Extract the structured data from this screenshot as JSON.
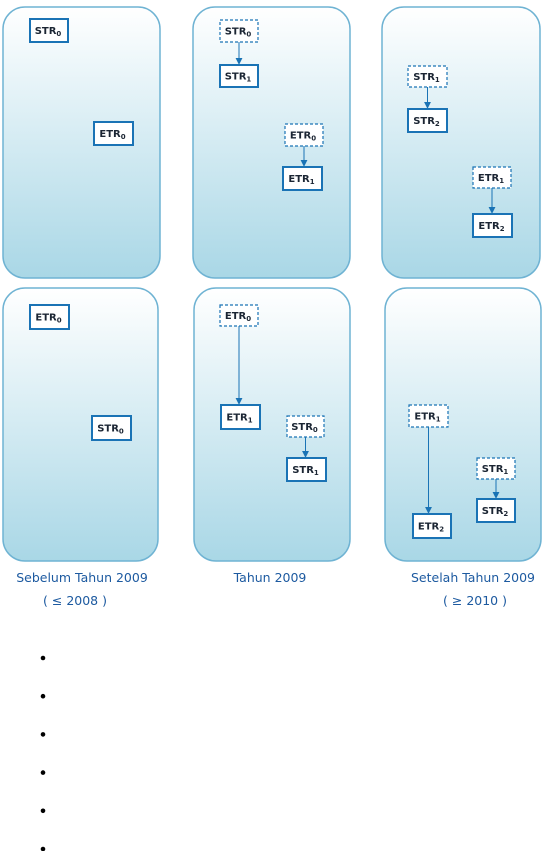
{
  "panels": [
    {
      "id": "top-before",
      "boxes": [
        {
          "base": "STR",
          "sub": "0",
          "dashed": false
        },
        {
          "base": "ETR",
          "sub": "0",
          "dashed": false
        }
      ]
    },
    {
      "id": "top-2009",
      "boxes": [
        {
          "base": "STR",
          "sub": "0",
          "dashed": true
        },
        {
          "base": "STR",
          "sub": "1",
          "dashed": false
        },
        {
          "base": "ETR",
          "sub": "0",
          "dashed": true
        },
        {
          "base": "ETR",
          "sub": "1",
          "dashed": false
        }
      ]
    },
    {
      "id": "top-after",
      "boxes": [
        {
          "base": "STR",
          "sub": "1",
          "dashed": true
        },
        {
          "base": "STR",
          "sub": "2",
          "dashed": false
        },
        {
          "base": "ETR",
          "sub": "1",
          "dashed": true
        },
        {
          "base": "ETR",
          "sub": "2",
          "dashed": false
        }
      ]
    },
    {
      "id": "bottom-before",
      "boxes": [
        {
          "base": "ETR",
          "sub": "0",
          "dashed": false
        },
        {
          "base": "STR",
          "sub": "0",
          "dashed": false
        }
      ]
    },
    {
      "id": "bottom-2009",
      "boxes": [
        {
          "base": "ETR",
          "sub": "0",
          "dashed": true
        },
        {
          "base": "ETR",
          "sub": "1",
          "dashed": false
        },
        {
          "base": "STR",
          "sub": "0",
          "dashed": true
        },
        {
          "base": "STR",
          "sub": "1",
          "dashed": false
        }
      ]
    },
    {
      "id": "bottom-after",
      "boxes": [
        {
          "base": "ETR",
          "sub": "1",
          "dashed": true
        },
        {
          "base": "ETR",
          "sub": "2",
          "dashed": false
        },
        {
          "base": "STR",
          "sub": "1",
          "dashed": true
        },
        {
          "base": "STR",
          "sub": "2",
          "dashed": false
        }
      ]
    }
  ],
  "captions": [
    {
      "line1": "Sebelum Tahun 2009",
      "line2": "( ≤ 2008 )"
    },
    {
      "line1": "Tahun 2009",
      "line2": ""
    },
    {
      "line1": "Setelah Tahun 2009",
      "line2": "( ≥ 2010 )"
    }
  ],
  "bullet_count": 6,
  "colors": {
    "panel_top": "#ffffff",
    "panel_bottom": "#a9d7e6",
    "panel_border": "#6fb3d3",
    "box_border": "#1a73b5",
    "arrow": "#1a73b5",
    "caption": "#1d5aa0"
  }
}
